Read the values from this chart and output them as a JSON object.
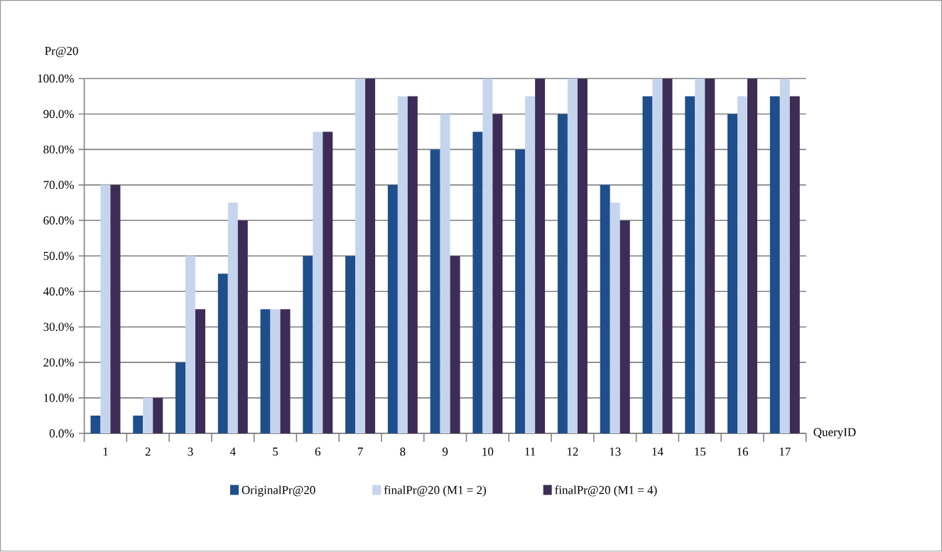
{
  "chart_data": {
    "type": "bar",
    "xlabel": "QueryID",
    "ylabel": "Pr@20",
    "categories": [
      "1",
      "2",
      "3",
      "4",
      "5",
      "6",
      "7",
      "8",
      "9",
      "10",
      "11",
      "12",
      "13",
      "14",
      "15",
      "16",
      "17"
    ],
    "series": [
      {
        "name": "OriginalPr@20",
        "color": "#1f4e8c",
        "values": [
          5,
          5,
          20,
          45,
          35,
          50,
          50,
          70,
          80,
          85,
          80,
          90,
          70,
          95,
          95,
          90,
          95
        ]
      },
      {
        "name": "finalPr@20 (M1 = 2)",
        "color": "#c5d5ee",
        "values": [
          70,
          10,
          50,
          65,
          35,
          85,
          100,
          95,
          90,
          100,
          95,
          100,
          65,
          100,
          100,
          95,
          100
        ]
      },
      {
        "name": "finalPr@20 (M1 = 4)",
        "color": "#3d2c55",
        "values": [
          70,
          10,
          35,
          60,
          35,
          85,
          100,
          95,
          50,
          90,
          100,
          100,
          60,
          100,
          100,
          100,
          95
        ]
      }
    ],
    "ylim": [
      0,
      100
    ],
    "yticks": [
      {
        "value": 0,
        "label": "0.0%"
      },
      {
        "value": 10,
        "label": "10.0%"
      },
      {
        "value": 20,
        "label": "20.0%"
      },
      {
        "value": 30,
        "label": "30.0%"
      },
      {
        "value": 40,
        "label": "40.0%"
      },
      {
        "value": 50,
        "label": "50.0%"
      },
      {
        "value": 60,
        "label": "60.0%"
      },
      {
        "value": 70,
        "label": "70.0%"
      },
      {
        "value": 80,
        "label": "80.0%"
      },
      {
        "value": 90,
        "label": "90.0%"
      },
      {
        "value": 100,
        "label": "100.0%"
      }
    ],
    "grid": "y",
    "legend": "bottom"
  }
}
